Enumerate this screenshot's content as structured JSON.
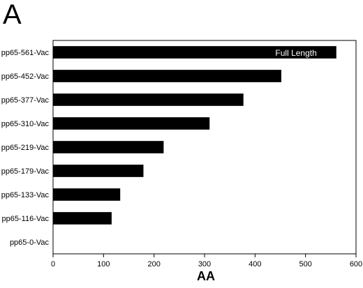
{
  "chart_data": {
    "type": "bar",
    "orientation": "horizontal",
    "panel_label": "A",
    "title": "",
    "xlabel": "AA",
    "ylabel": "",
    "categories": [
      "pp65-561-Vac",
      "pp65-452-Vac",
      "pp65-377-Vac",
      "pp65-310-Vac",
      "pp65-219-Vac",
      "pp65-179-Vac",
      "pp65-133-Vac",
      "pp65-116-Vac",
      "pp65-0-Vac"
    ],
    "values": [
      561,
      452,
      377,
      310,
      219,
      179,
      133,
      116,
      0
    ],
    "xlim": [
      0,
      600
    ],
    "xticks": [
      0,
      100,
      200,
      300,
      400,
      500,
      600
    ],
    "grid": false,
    "legend": "none",
    "bar_color": "#000000",
    "annotations": [
      {
        "category": "pp65-561-Vac",
        "text": "Full Length",
        "color": "#ffffff"
      }
    ]
  }
}
